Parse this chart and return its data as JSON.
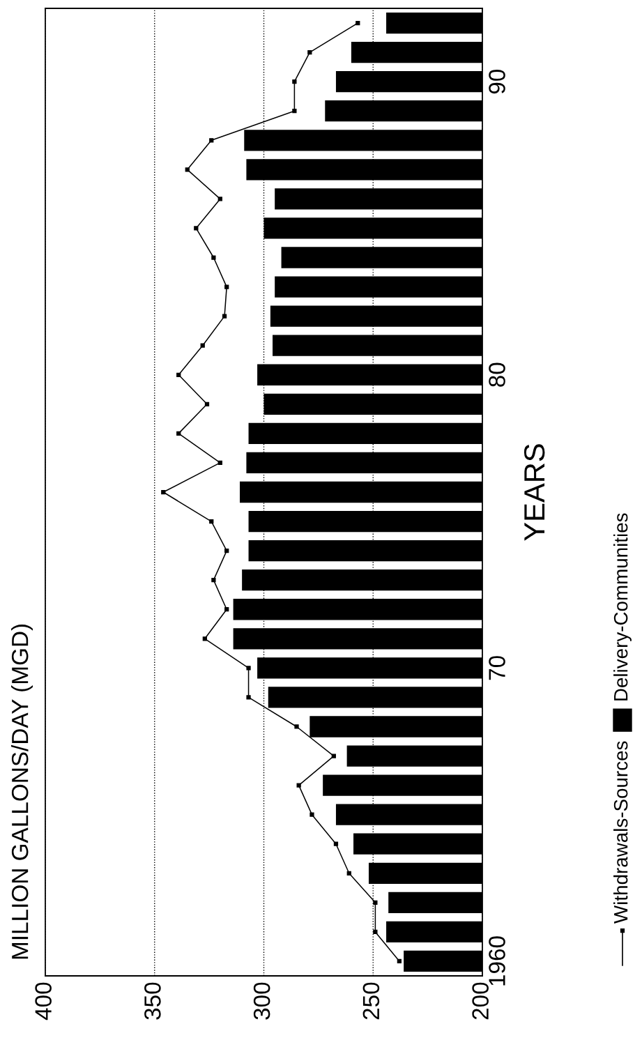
{
  "chart_data": {
    "type": "bar",
    "orientation": "horizontal",
    "title": "MILLION GALLONS/DAY (MGD)",
    "ylabel": "YEARS",
    "categories": [
      null,
      null,
      "90",
      null,
      null,
      null,
      null,
      null,
      null,
      null,
      null,
      null,
      "80",
      null,
      null,
      null,
      null,
      null,
      null,
      null,
      null,
      null,
      "70",
      null,
      null,
      null,
      null,
      null,
      null,
      null,
      null,
      null,
      "1960"
    ],
    "series": [
      {
        "name": "Delivery-Communities",
        "color": "#000000",
        "values": [
          244,
          260,
          267,
          272,
          309,
          308,
          295,
          300,
          292,
          295,
          297,
          296,
          303,
          300,
          307,
          308,
          311,
          307,
          307,
          310,
          314,
          314,
          303,
          298,
          279,
          262,
          273,
          267,
          259,
          252,
          243,
          244,
          236
        ]
      },
      {
        "name": "Withdrawals-Sources",
        "type": "line",
        "color": "#000000",
        "marker": "square",
        "line_style": "solid",
        "values": [
          257,
          279,
          286,
          286,
          324,
          335,
          320,
          331,
          323,
          317,
          318,
          328,
          339,
          326,
          339,
          320,
          346,
          324,
          317,
          323,
          317,
          327,
          307,
          307,
          285,
          268,
          284,
          278,
          267,
          261,
          249,
          249,
          238
        ]
      }
    ],
    "xlim": [
      400,
      200
    ],
    "xticks": [
      200,
      250,
      300,
      350,
      400
    ],
    "grid": "x",
    "legend": "right"
  }
}
